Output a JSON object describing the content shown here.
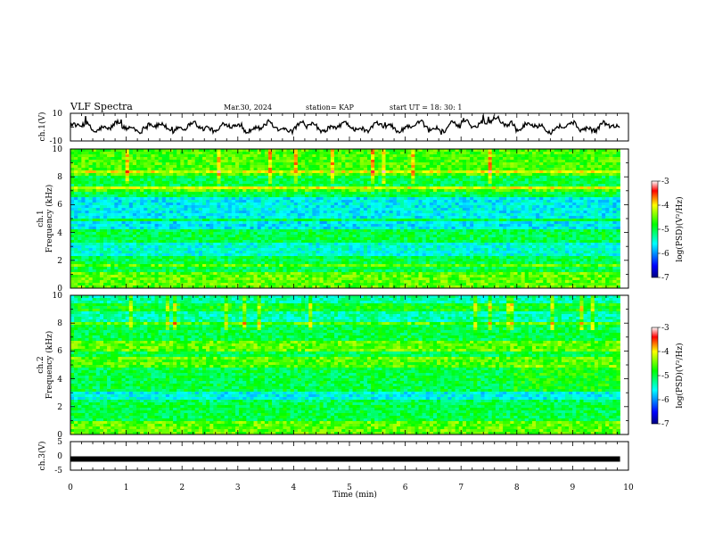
{
  "header": {
    "title": "VLF Spectra",
    "date": "Mar.30, 2024",
    "station": "station= KAP",
    "start": "start  UT  =   18: 30: 1"
  },
  "chart_data": [
    {
      "type": "line",
      "panel": "ch1-waveform",
      "ylabel": "ch.1(V)",
      "ylim": [
        -10,
        10
      ],
      "y_ticks": [
        "10",
        "-10"
      ],
      "xlim": [
        0,
        10
      ],
      "data_extent_min": 9.85
    },
    {
      "type": "heatmap",
      "panel": "ch1-spectrogram",
      "ylabel_line1": "ch.1",
      "ylabel_line2": "Frequency (kHz)",
      "ylim": [
        0,
        10
      ],
      "y_ticks": [
        "0",
        "2",
        "4",
        "6",
        "8",
        "10"
      ],
      "xlim": [
        0,
        10
      ],
      "colorbar": {
        "label": "log(PSD)(V²/Hz)",
        "range": [
          -7,
          -3
        ],
        "ticks": [
          "-3",
          "-4",
          "-5",
          "-6",
          "-7"
        ]
      }
    },
    {
      "type": "heatmap",
      "panel": "ch2-spectrogram",
      "ylabel_line1": "ch.2",
      "ylabel_line2": "Frequency (kHz)",
      "ylim": [
        0,
        10
      ],
      "y_ticks": [
        "0",
        "2",
        "4",
        "6",
        "8",
        "10"
      ],
      "xlim": [
        0,
        10
      ],
      "colorbar": {
        "label": "log(PSD)(V²/Hz)",
        "range": [
          -7,
          -3
        ],
        "ticks": [
          "-3",
          "-4",
          "-5",
          "-6",
          "-7"
        ]
      }
    },
    {
      "type": "line",
      "panel": "ch3-waveform",
      "ylabel": "ch.3(V)",
      "ylim": [
        -5,
        5
      ],
      "y_ticks": [
        "5",
        "0",
        "-5"
      ],
      "xlim": [
        0,
        10
      ],
      "level_value": -1.1
    }
  ],
  "x_axis": {
    "label": "Time (min)",
    "ticks": [
      "0",
      "1",
      "2",
      "3",
      "4",
      "5",
      "6",
      "7",
      "8",
      "9",
      "10"
    ]
  }
}
